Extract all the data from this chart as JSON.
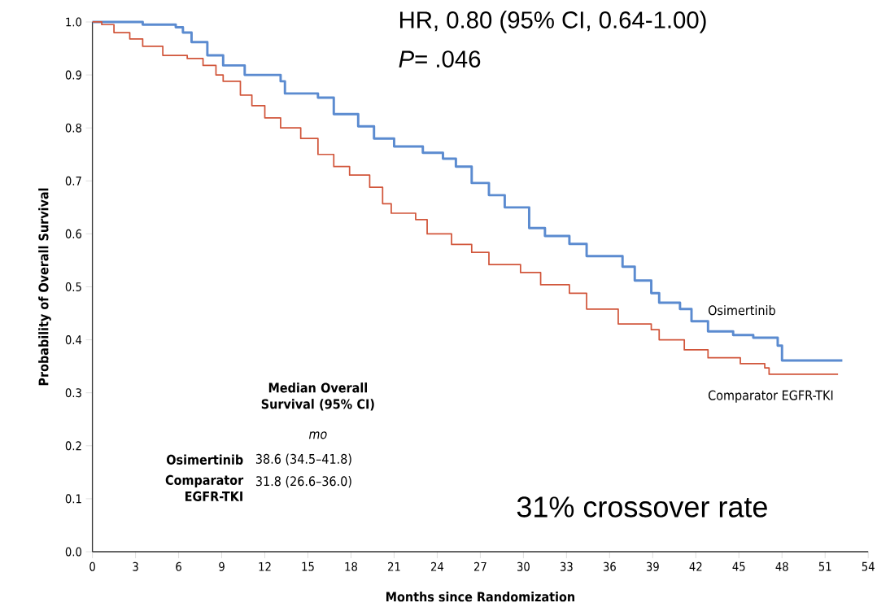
{
  "chart_data": {
    "type": "step",
    "xlabel": "Months since Randomization",
    "ylabel": "Probability of Overall Survival",
    "xlim": [
      0,
      54
    ],
    "xticks": [
      0,
      3,
      6,
      9,
      12,
      15,
      18,
      21,
      24,
      27,
      30,
      33,
      36,
      39,
      42,
      45,
      48,
      51,
      54
    ],
    "ylim": [
      0,
      1.0
    ],
    "yticks": [
      {
        "value": 0,
        "label": "0.0"
      },
      0.1,
      0.2,
      0.3,
      0.4,
      0.5,
      0.6,
      0.7,
      0.8,
      0.9,
      {
        "value": 1.0,
        "label": "1.0"
      }
    ],
    "series": [
      {
        "name": "Osimertinib",
        "color": "#5b8bd0",
        "x": [
          0,
          3.5,
          5.8,
          6.3,
          6.9,
          8,
          9.1,
          10.6,
          13.1,
          13.4,
          15.7,
          16.8,
          18.5,
          19.6,
          21,
          23,
          24.4,
          25.3,
          26.4,
          27.6,
          28.7,
          30.4,
          31.5,
          33.2,
          34.4,
          36.9,
          37.75,
          38.9,
          39.45,
          40.9,
          41.7,
          42.85,
          44.6,
          46,
          47.7,
          48,
          52.2
        ],
        "values": [
          1.0,
          0.995,
          0.99,
          0.98,
          0.962,
          0.937,
          0.918,
          0.9,
          0.888,
          0.865,
          0.857,
          0.826,
          0.803,
          0.78,
          0.765,
          0.753,
          0.742,
          0.727,
          0.696,
          0.673,
          0.65,
          0.611,
          0.596,
          0.581,
          0.558,
          0.538,
          0.512,
          0.488,
          0.47,
          0.458,
          0.435,
          0.416,
          0.409,
          0.404,
          0.389,
          0.361,
          0.361
        ]
      },
      {
        "name": "Comparator EGFR-TKI",
        "color": "#d1553a",
        "x": [
          0,
          0.65,
          1.5,
          2.6,
          3.5,
          4.9,
          6.6,
          7.7,
          8.6,
          9.1,
          10.3,
          11.1,
          12,
          13.1,
          14.5,
          15.7,
          16.8,
          17.9,
          19.3,
          20.2,
          20.8,
          22.5,
          23.3,
          25,
          26.4,
          27.6,
          29.8,
          31.2,
          33.2,
          34.4,
          36.6,
          38.9,
          39.45,
          41.2,
          42.85,
          45.1,
          46.8,
          47.1,
          51.9
        ],
        "values": [
          1.0,
          0.995,
          0.98,
          0.968,
          0.954,
          0.937,
          0.931,
          0.918,
          0.9,
          0.888,
          0.862,
          0.842,
          0.819,
          0.8,
          0.78,
          0.75,
          0.727,
          0.711,
          0.688,
          0.657,
          0.639,
          0.627,
          0.6,
          0.58,
          0.565,
          0.542,
          0.527,
          0.504,
          0.488,
          0.458,
          0.43,
          0.419,
          0.4,
          0.381,
          0.366,
          0.355,
          0.347,
          0.335,
          0.335
        ]
      }
    ],
    "annotations": [
      "HR, 0.80 (95% CI, 0.64-1.00)",
      "*P*= .046",
      "**Median Overall Survival (95% CI)**",
      "*mo*",
      "**Osimertinib**",
      "38.6 (34.5–41.8)",
      "**Comparator EGFR-TKI**",
      "31.8 (26.6–36.0)",
      "31% crossover rate"
    ]
  }
}
